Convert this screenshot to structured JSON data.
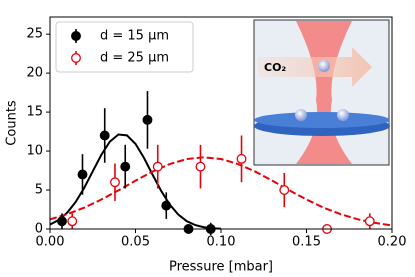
{
  "chart_data": {
    "type": "errorbar",
    "xlabel": "Pressure [mbar]",
    "ylabel": "Counts",
    "xlim": [
      0,
      0.2
    ],
    "ylim": [
      0,
      27.2
    ],
    "xticks": [
      {
        "value": 0,
        "label": "0.00"
      },
      {
        "value": 0.05,
        "label": "0.05"
      },
      {
        "value": 0.1,
        "label": "0.10"
      },
      {
        "value": 0.15,
        "label": "0.15"
      },
      {
        "value": 0.2,
        "label": "0.20"
      }
    ],
    "yticks": [
      0,
      5,
      10,
      15,
      20,
      25
    ],
    "legend": "upper left",
    "series": [
      {
        "name": "d = 15 μm",
        "color": "#000000",
        "marker": "filled",
        "x": [
          0.007,
          0.019,
          0.032,
          0.044,
          0.057,
          0.068,
          0.081,
          0.094
        ],
        "values": [
          1,
          7,
          12,
          8,
          14,
          3,
          0,
          0
        ],
        "errors": [
          1,
          2.6,
          3.5,
          2.8,
          3.7,
          1.7,
          0,
          0.8
        ]
      },
      {
        "name": "d = 25 μm",
        "color": "#e8000b",
        "marker": "open",
        "x": [
          0.013,
          0.038,
          0.063,
          0.088,
          0.112,
          0.137,
          0.162,
          0.187
        ],
        "values": [
          1,
          6,
          8,
          8,
          9,
          5,
          0,
          1
        ],
        "errors": [
          1,
          2.4,
          2.8,
          2.8,
          3,
          2.2,
          0,
          1
        ]
      }
    ],
    "fits": [
      {
        "color": "#000000",
        "dash": "solid",
        "x": [
          0,
          0.005,
          0.01,
          0.015,
          0.02,
          0.025,
          0.03,
          0.035,
          0.04,
          0.045,
          0.05,
          0.055,
          0.06,
          0.065,
          0.07,
          0.075,
          0.08,
          0.085,
          0.09,
          0.095,
          0.1
        ],
        "values": [
          0.58,
          1.14,
          2.08,
          3.46,
          5.28,
          7.4,
          9.51,
          11.21,
          12.12,
          12.01,
          10.92,
          9.11,
          6.96,
          4.89,
          3.14,
          1.85,
          1.0,
          0.5,
          0.23,
          0.09,
          0.04
        ]
      },
      {
        "color": "#e8000b",
        "dash": "dashed",
        "x": [
          0,
          0.01,
          0.02,
          0.03,
          0.04,
          0.05,
          0.06,
          0.07,
          0.08,
          0.09,
          0.1,
          0.11,
          0.12,
          0.13,
          0.14,
          0.15,
          0.16,
          0.17,
          0.18,
          0.19,
          0.2
        ],
        "values": [
          1.24,
          1.9,
          2.74,
          3.78,
          4.96,
          6.2,
          7.37,
          8.33,
          8.98,
          9.2,
          8.98,
          8.33,
          7.37,
          6.2,
          4.96,
          3.78,
          2.74,
          1.9,
          1.24,
          0.78,
          0.46
        ]
      }
    ],
    "inset_label": "CO₂"
  }
}
